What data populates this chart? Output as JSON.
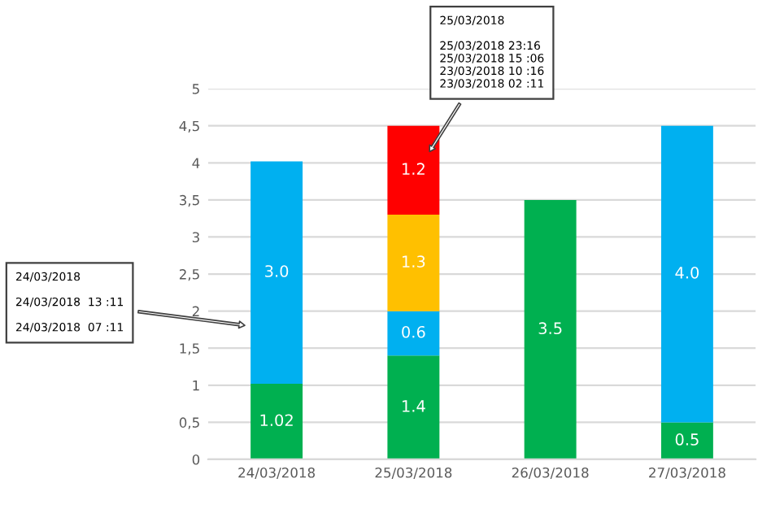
{
  "chart_data": {
    "type": "bar",
    "stacked": true,
    "categories": [
      "24/03/2018",
      "25/03/2018",
      "26/03/2018",
      "27/03/2018"
    ],
    "series": [
      {
        "color": "#00b050",
        "values": [
          1.02,
          1.4,
          3.5,
          0.5
        ],
        "value_labels": [
          "1.02",
          "1.4",
          "3.5",
          "0.5"
        ]
      },
      {
        "color": "#00b0f0",
        "values": [
          3.0,
          0.6,
          null,
          4.0
        ],
        "value_labels": [
          "3.0",
          "0.6",
          null,
          "4.0"
        ]
      },
      {
        "color": "#ffc000",
        "values": [
          null,
          1.3,
          null,
          null
        ],
        "value_labels": [
          null,
          "1.3",
          null,
          null
        ]
      },
      {
        "color": "#ff0000",
        "values": [
          null,
          1.2,
          null,
          null
        ],
        "value_labels": [
          null,
          "1.2",
          null,
          null
        ]
      }
    ],
    "ylim": [
      0,
      5
    ],
    "yticks": [
      0,
      {
        "value": 0.5,
        "label": "0,5"
      },
      1,
      {
        "value": 1.5,
        "label": "1,5"
      },
      2,
      {
        "value": 2.5,
        "label": "2,5"
      },
      3,
      {
        "value": 3.5,
        "label": "3,5"
      },
      4,
      {
        "value": 4.5,
        "label": "4,5"
      },
      5
    ],
    "grid": "y",
    "annotations": [
      "24/03/2018\n\n24/03/2018  13 :11\n\n24/03/2018  07 :11",
      "25/03/2018\n\n25/03/2018 23:16\n25/03/2018 15 :06\n23/03/2018 10 :16\n23/03/2018 02 :11"
    ]
  }
}
